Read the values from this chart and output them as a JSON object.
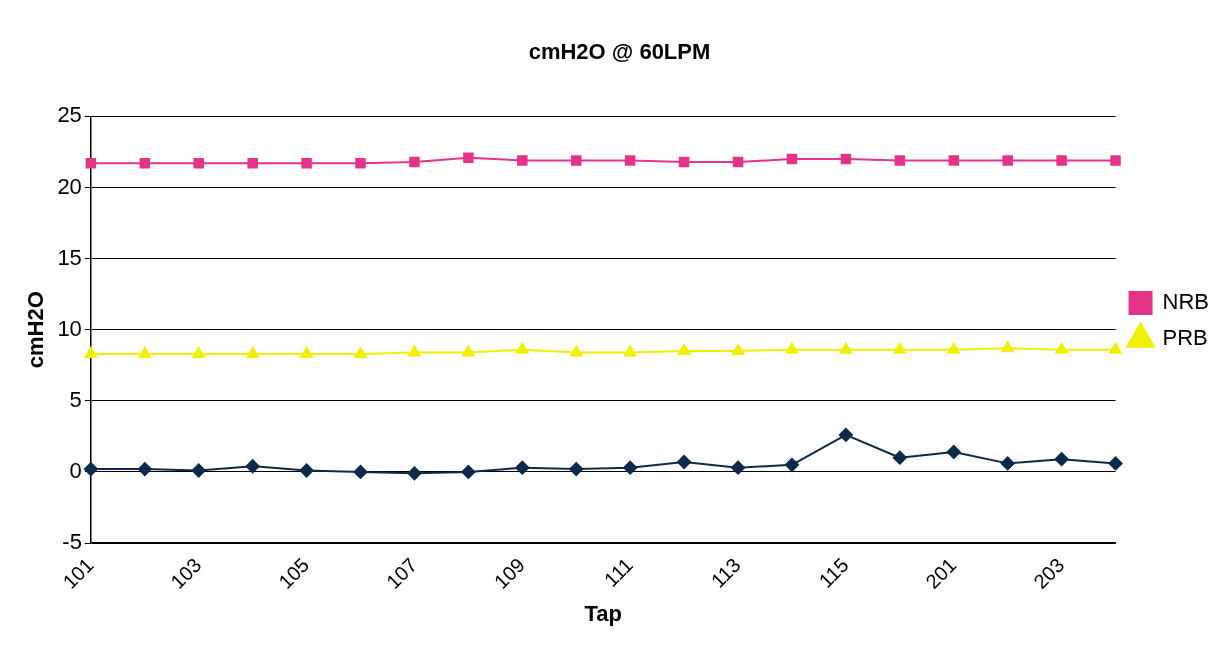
{
  "chart_data": {
    "type": "line",
    "title": "cmH2O @ 60LPM",
    "xlabel": "Tap",
    "ylabel": "cmH2O",
    "categories": [
      "101",
      null,
      "103",
      null,
      "105",
      null,
      "107",
      null,
      "109",
      null,
      "111",
      null,
      "113",
      null,
      "115",
      null,
      "201",
      null,
      "203",
      null
    ],
    "series": [
      {
        "color": "#0d2a4a",
        "marker": "diamond",
        "values": [
          0.2,
          0.2,
          0.1,
          0.4,
          0.1,
          0.0,
          -0.1,
          0.0,
          0.3,
          0.2,
          0.3,
          0.7,
          0.3,
          0.5,
          2.6,
          1.0,
          1.4,
          0.6,
          0.9,
          0.6
        ]
      },
      {
        "name": "NRB",
        "color": "#e6338a",
        "marker": "square",
        "values": [
          21.7,
          21.7,
          21.7,
          21.7,
          21.7,
          21.7,
          21.8,
          22.1,
          21.9,
          21.9,
          21.9,
          21.8,
          21.8,
          22.0,
          22.0,
          21.9,
          21.9,
          21.9,
          21.9,
          21.9
        ]
      },
      {
        "name": "PRB",
        "color": "#f0f000",
        "marker": "triangle",
        "values": [
          8.3,
          8.3,
          8.3,
          8.3,
          8.3,
          8.3,
          8.4,
          8.4,
          8.6,
          8.4,
          8.4,
          8.5,
          8.5,
          8.6,
          8.6,
          8.6,
          8.6,
          8.7,
          8.6,
          8.6
        ]
      }
    ],
    "ylim": [
      -5,
      25
    ],
    "yticks": [
      -5,
      0,
      5,
      10,
      15,
      20,
      25
    ],
    "grid": "y",
    "legend": "right"
  }
}
